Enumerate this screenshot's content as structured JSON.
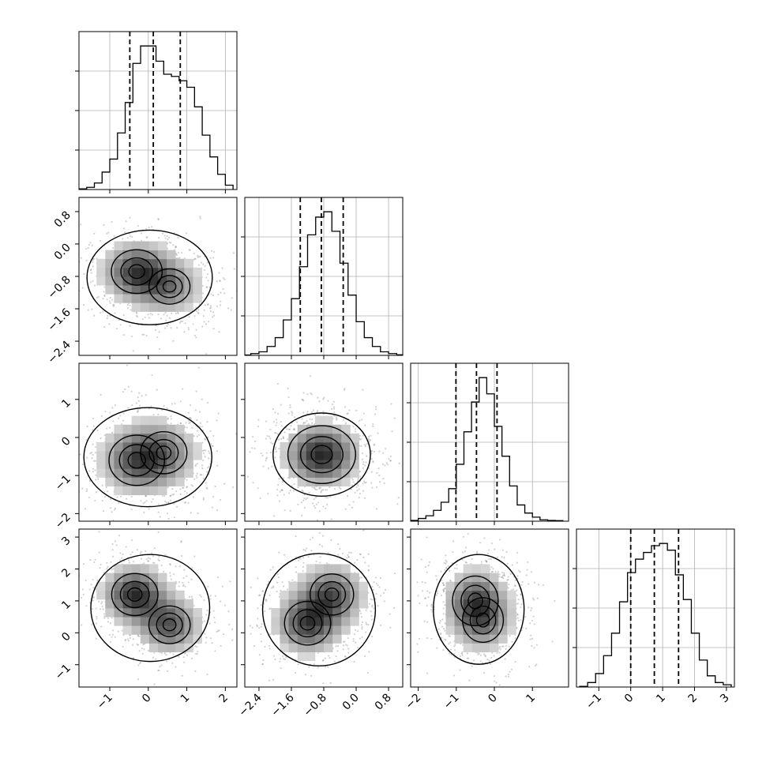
{
  "chart_data": {
    "type": "corner",
    "title": "",
    "n_parameters": 4,
    "grid": true,
    "quantile_lines": "dashed",
    "axes": [
      {
        "range": [
          -1.8,
          2.3
        ],
        "ticks": [
          -1,
          0,
          1,
          2
        ],
        "tick_labels": [
          "−1",
          "0",
          "1",
          "2"
        ]
      },
      {
        "range": [
          -2.75,
          1.15
        ],
        "ticks": [
          -2.4,
          -1.6,
          -0.8,
          0.0,
          0.8
        ],
        "tick_labels": [
          "−2.4",
          "−1.6",
          "−0.8",
          "0.0",
          "0.8"
        ]
      },
      {
        "range": [
          -2.2,
          1.95
        ],
        "ticks": [
          -2,
          -1,
          0,
          1
        ],
        "tick_labels": [
          "−2",
          "−1",
          "0",
          "1"
        ]
      },
      {
        "range": [
          -1.7,
          3.25
        ],
        "ticks": [
          -1,
          0,
          1,
          2,
          3
        ],
        "tick_labels": [
          "−1",
          "0",
          "1",
          "2",
          "3"
        ]
      }
    ],
    "histograms": [
      {
        "parameter": 1,
        "bin_edges": [
          -1.8,
          -1.6,
          -1.4,
          -1.2,
          -1.0,
          -0.8,
          -0.6,
          -0.4,
          -0.2,
          0.0,
          0.2,
          0.4,
          0.6,
          0.8,
          1.0,
          1.2,
          1.4,
          1.6,
          1.8,
          2.0,
          2.2
        ],
        "counts": [
          0.3,
          1,
          3,
          8,
          14,
          26,
          40,
          58,
          66,
          66,
          59,
          53,
          52,
          50,
          47,
          38,
          25,
          15,
          7,
          2
        ],
        "quantiles": [
          -0.48,
          0.13,
          0.83
        ]
      },
      {
        "parameter": 2,
        "bin_edges": [
          -2.8,
          -2.6,
          -2.4,
          -2.2,
          -2.0,
          -1.8,
          -1.6,
          -1.4,
          -1.2,
          -1.0,
          -0.8,
          -0.6,
          -0.4,
          -0.2,
          0.0,
          0.2,
          0.4,
          0.6,
          0.8,
          1.0,
          1.2
        ],
        "counts": [
          0.2,
          1,
          2,
          5,
          10,
          20,
          32,
          50,
          68,
          78,
          81,
          70,
          52,
          34,
          19,
          10,
          5,
          2,
          1,
          0.3
        ],
        "quantiles": [
          -1.38,
          -0.86,
          -0.32
        ]
      },
      {
        "parameter": 3,
        "bin_edges": [
          -2.2,
          -2.0,
          -1.8,
          -1.6,
          -1.4,
          -1.2,
          -1.0,
          -0.8,
          -0.6,
          -0.4,
          -0.2,
          0.0,
          0.2,
          0.4,
          0.6,
          0.8,
          1.0,
          1.2,
          1.4,
          1.6,
          1.8
        ],
        "counts": [
          0.3,
          1,
          2,
          4,
          7,
          12,
          21,
          33,
          44,
          53,
          47,
          35,
          24,
          13,
          6,
          3,
          1.5,
          0.5,
          0.3,
          0.2
        ],
        "quantiles": [
          -1.01,
          -0.47,
          0.07
        ]
      },
      {
        "parameter": 4,
        "bin_edges": [
          -1.6,
          -1.35,
          -1.1,
          -0.85,
          -0.6,
          -0.35,
          -0.1,
          0.15,
          0.4,
          0.65,
          0.9,
          1.15,
          1.4,
          1.65,
          1.9,
          2.15,
          2.4,
          2.65,
          2.9,
          3.15
        ],
        "counts": [
          0.3,
          2,
          6,
          14,
          24,
          38,
          51,
          57,
          60,
          63,
          64,
          61,
          50,
          39,
          24,
          12,
          5,
          2,
          1
        ],
        "quantiles": [
          0.0,
          0.74,
          1.5
        ]
      }
    ],
    "density_2d": [
      {
        "x_param": 1,
        "y_param": 2,
        "modes": [
          {
            "x": -0.3,
            "y": -0.68,
            "w": 1.0
          },
          {
            "x": 0.55,
            "y": -1.05,
            "w": 0.65
          }
        ],
        "spread": [
          0.55,
          0.45
        ]
      },
      {
        "x_param": 1,
        "y_param": 3,
        "modes": [
          {
            "x": -0.3,
            "y": -0.6,
            "w": 1.0
          },
          {
            "x": 0.4,
            "y": -0.4,
            "w": 0.7
          }
        ],
        "spread": [
          0.6,
          0.55
        ]
      },
      {
        "x_param": 2,
        "y_param": 3,
        "modes": [
          {
            "x": -0.85,
            "y": -0.45,
            "w": 1.0
          }
        ],
        "spread": [
          0.55,
          0.5
        ]
      },
      {
        "x_param": 1,
        "y_param": 4,
        "modes": [
          {
            "x": -0.35,
            "y": 1.2,
            "w": 1.0
          },
          {
            "x": 0.55,
            "y": 0.25,
            "w": 0.8
          }
        ],
        "spread": [
          0.5,
          0.55
        ]
      },
      {
        "x_param": 2,
        "y_param": 4,
        "modes": [
          {
            "x": -1.2,
            "y": 0.3,
            "w": 0.9
          },
          {
            "x": -0.6,
            "y": 1.2,
            "w": 0.8
          }
        ],
        "spread": [
          0.5,
          0.6
        ]
      },
      {
        "x_param": 3,
        "y_param": 4,
        "modes": [
          {
            "x": -0.5,
            "y": 1.0,
            "w": 1.0
          },
          {
            "x": -0.3,
            "y": 0.4,
            "w": 0.8
          }
        ],
        "spread": [
          0.5,
          0.65
        ]
      }
    ]
  }
}
